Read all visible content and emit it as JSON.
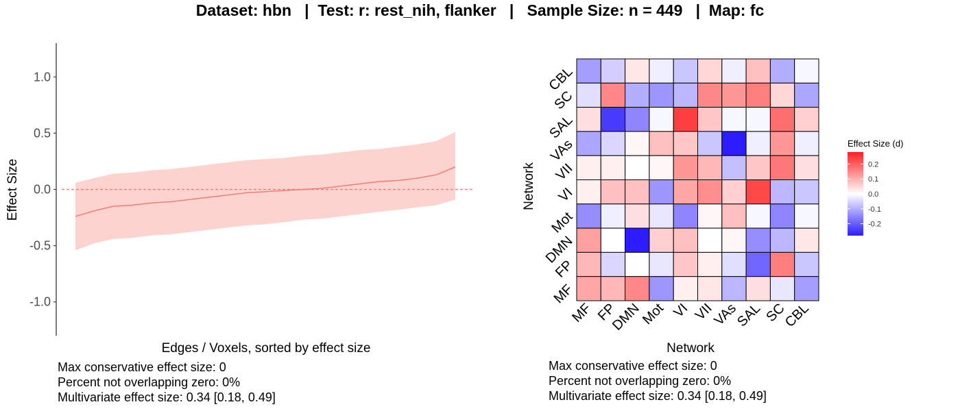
{
  "title": "Dataset: hbn   |  Test: r: rest_nih, flanker   |   Sample Size: n = 449   |  Map: fc",
  "colors": {
    "line": "#f8766d",
    "ribbon": "#fdd3d0",
    "zero_line": "#e07b74",
    "heat_low": "#2c1cff",
    "heat_mid": "#ffffff",
    "heat_high": "#ff1f1f"
  },
  "chart_data": [
    {
      "type": "line",
      "xlabel": "Edges / Voxels, sorted by effect size",
      "ylabel": "Effect Size",
      "ylim": [
        -1.3,
        1.3
      ],
      "yticks": [
        1.0,
        0.5,
        0.0,
        -0.5,
        -1.0
      ],
      "ytick_labels": [
        "1.0",
        "0.5",
        "0.0",
        "-0.5",
        "-1.0"
      ],
      "reference_line": 0.0,
      "grid": false,
      "x": [
        1,
        6,
        11,
        16,
        21,
        26,
        31,
        36,
        41,
        46,
        51,
        56,
        61,
        66,
        71,
        76,
        81,
        86,
        91,
        96,
        101
      ],
      "series": [
        {
          "values": [
            -0.24,
            -0.19,
            -0.15,
            -0.14,
            -0.12,
            -0.11,
            -0.09,
            -0.07,
            -0.05,
            -0.03,
            -0.02,
            -0.01,
            0.0,
            0.01,
            0.03,
            0.05,
            0.07,
            0.08,
            0.1,
            0.13,
            0.2
          ],
          "lower": [
            -0.54,
            -0.48,
            -0.44,
            -0.43,
            -0.41,
            -0.4,
            -0.38,
            -0.36,
            -0.34,
            -0.32,
            -0.31,
            -0.29,
            -0.27,
            -0.26,
            -0.24,
            -0.22,
            -0.2,
            -0.18,
            -0.16,
            -0.14,
            -0.09
          ],
          "upper": [
            0.06,
            0.1,
            0.14,
            0.15,
            0.17,
            0.18,
            0.2,
            0.22,
            0.24,
            0.26,
            0.27,
            0.28,
            0.3,
            0.31,
            0.33,
            0.35,
            0.36,
            0.38,
            0.4,
            0.43,
            0.51
          ]
        }
      ],
      "stats": [
        "Max conservative effect size: 0",
        "Percent not overlapping zero: 0%",
        "Multivariate effect size: 0.34 [0.18, 0.49]"
      ]
    },
    {
      "type": "heatmap",
      "xlabel": "Network",
      "ylabel": "Network",
      "x_categories": [
        "MF",
        "FP",
        "DMN",
        "Mot",
        "VI",
        "VII",
        "VAs",
        "SAL",
        "SC",
        "CBL"
      ],
      "y_categories": [
        "CBL",
        "SC",
        "SAL",
        "VAs",
        "VII",
        "VI",
        "Mot",
        "DMN",
        "FP",
        "MF"
      ],
      "values": [
        [
          -0.12,
          -0.06,
          0.03,
          -0.02,
          -0.07,
          0.05,
          -0.02,
          0.08,
          -0.1,
          -0.01
        ],
        [
          -0.04,
          0.15,
          -0.1,
          -0.13,
          -0.09,
          0.15,
          0.13,
          0.16,
          0.05,
          -0.11
        ],
        [
          0.04,
          -0.24,
          -0.15,
          -0.01,
          0.24,
          0.07,
          -0.01,
          -0.01,
          0.18,
          0.06
        ],
        [
          -0.11,
          -0.05,
          0.01,
          0.08,
          0.07,
          -0.07,
          -0.28,
          -0.02,
          0.13,
          -0.02
        ],
        [
          0.02,
          0.02,
          0.0,
          0.01,
          0.13,
          0.09,
          -0.08,
          0.07,
          0.17,
          0.04
        ],
        [
          0.02,
          0.08,
          0.08,
          -0.13,
          0.11,
          0.14,
          0.06,
          0.23,
          -0.09,
          -0.07
        ],
        [
          -0.14,
          -0.02,
          0.04,
          -0.03,
          -0.15,
          0.01,
          0.08,
          -0.01,
          -0.15,
          -0.01
        ],
        [
          0.12,
          0.0,
          -0.3,
          0.06,
          0.08,
          0.0,
          0.01,
          -0.14,
          -0.09,
          0.03
        ],
        [
          0.09,
          -0.05,
          0.0,
          -0.03,
          0.07,
          0.02,
          -0.04,
          -0.19,
          0.16,
          -0.07
        ],
        [
          0.11,
          0.09,
          0.15,
          -0.13,
          0.02,
          0.03,
          -0.09,
          0.04,
          -0.03,
          -0.12
        ]
      ],
      "color_range": [
        -0.28,
        0.28
      ],
      "legend": {
        "title": "Effect Size (d)",
        "ticks": [
          0.2,
          0.1,
          0.0,
          -0.1,
          -0.2
        ],
        "tick_labels": [
          "0.2",
          "0.1",
          "0.0",
          "-0.1",
          "-0.2"
        ],
        "placement": "right"
      },
      "stats": [
        "Max conservative effect size: 0",
        "Percent not overlapping zero: 0%",
        "Multivariate effect size: 0.34 [0.18, 0.49]"
      ]
    }
  ]
}
